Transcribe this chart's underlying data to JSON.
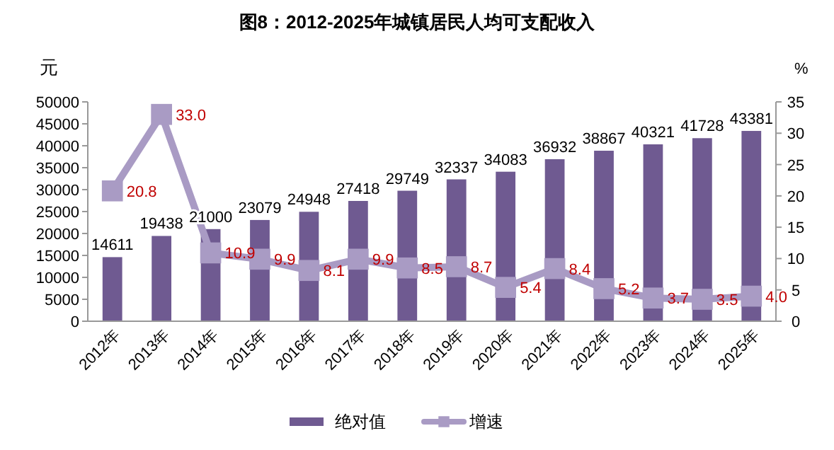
{
  "chart_data": {
    "type": "bar",
    "title": "图8：2012-2025年城镇居民人均可支配收入",
    "ylabel": "元",
    "y2label": "%",
    "categories": [
      "2012年",
      "2013年",
      "2014年",
      "2015年",
      "2016年",
      "2017年",
      "2018年",
      "2019年",
      "2020年",
      "2021年",
      "2022年",
      "2023年",
      "2024年",
      "2025年"
    ],
    "series": [
      {
        "name": "绝对值",
        "color": "#6f5a91",
        "values": [
          14611,
          19438,
          21000,
          23079,
          24948,
          27418,
          29749,
          32337,
          34083,
          36932,
          38867,
          40321,
          41728,
          43381
        ]
      },
      {
        "name": "增速",
        "type": "line",
        "axis": "y2",
        "color": "#a99bc4",
        "marker": "square",
        "values": [
          20.8,
          33,
          10.9,
          9.9,
          8.1,
          9.9,
          8.5,
          8.7,
          5.4,
          8.4,
          5.2,
          3.7,
          3.5,
          4
        ],
        "value_labels": [
          "20.8",
          "33.0",
          "10.9",
          "9.9",
          "8.1",
          "9.9",
          "8.5",
          "8.7",
          "5.4",
          "8.4",
          "5.2",
          "3.7",
          "3.5",
          "4.0"
        ]
      }
    ],
    "ylim": [
      0,
      50000
    ],
    "yticks": [
      0,
      5000,
      10000,
      15000,
      20000,
      25000,
      30000,
      35000,
      40000,
      45000,
      50000
    ],
    "y2lim": [
      0,
      35
    ],
    "y2ticks": [
      0,
      5,
      10,
      15,
      20,
      25,
      30,
      35
    ],
    "data_labels": true,
    "legend": "bottom"
  }
}
